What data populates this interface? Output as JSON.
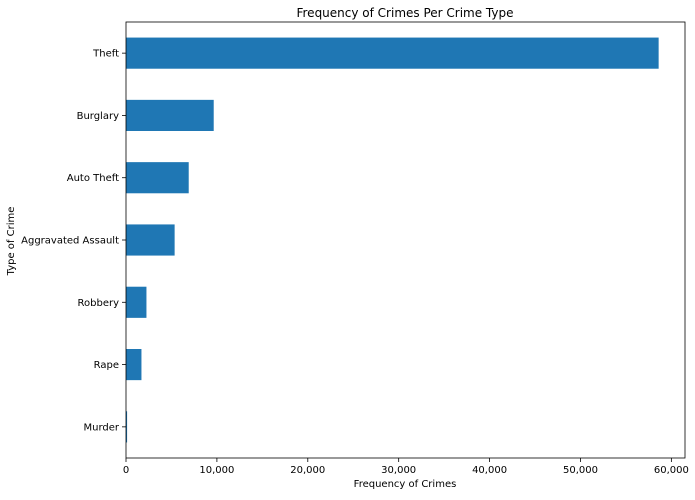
{
  "chart_data": {
    "type": "bar",
    "orientation": "horizontal",
    "title": "Frequency of Crimes Per Crime Type",
    "xlabel": "Frequency of Crimes",
    "ylabel": "Type of Crime",
    "categories": [
      "Theft",
      "Burglary",
      "Auto Theft",
      "Aggravated Assault",
      "Robbery",
      "Rape",
      "Murder"
    ],
    "values": [
      58600,
      9650,
      6900,
      5350,
      2250,
      1700,
      120
    ],
    "xlim": [
      0,
      61500
    ],
    "xticks": [
      0,
      10000,
      20000,
      30000,
      40000,
      50000,
      60000
    ],
    "xtick_labels": [
      "0",
      "10,000",
      "20,000",
      "30,000",
      "40,000",
      "50,000",
      "60,000"
    ],
    "bar_color": "#1f77b4",
    "grid": false,
    "legend": false
  }
}
